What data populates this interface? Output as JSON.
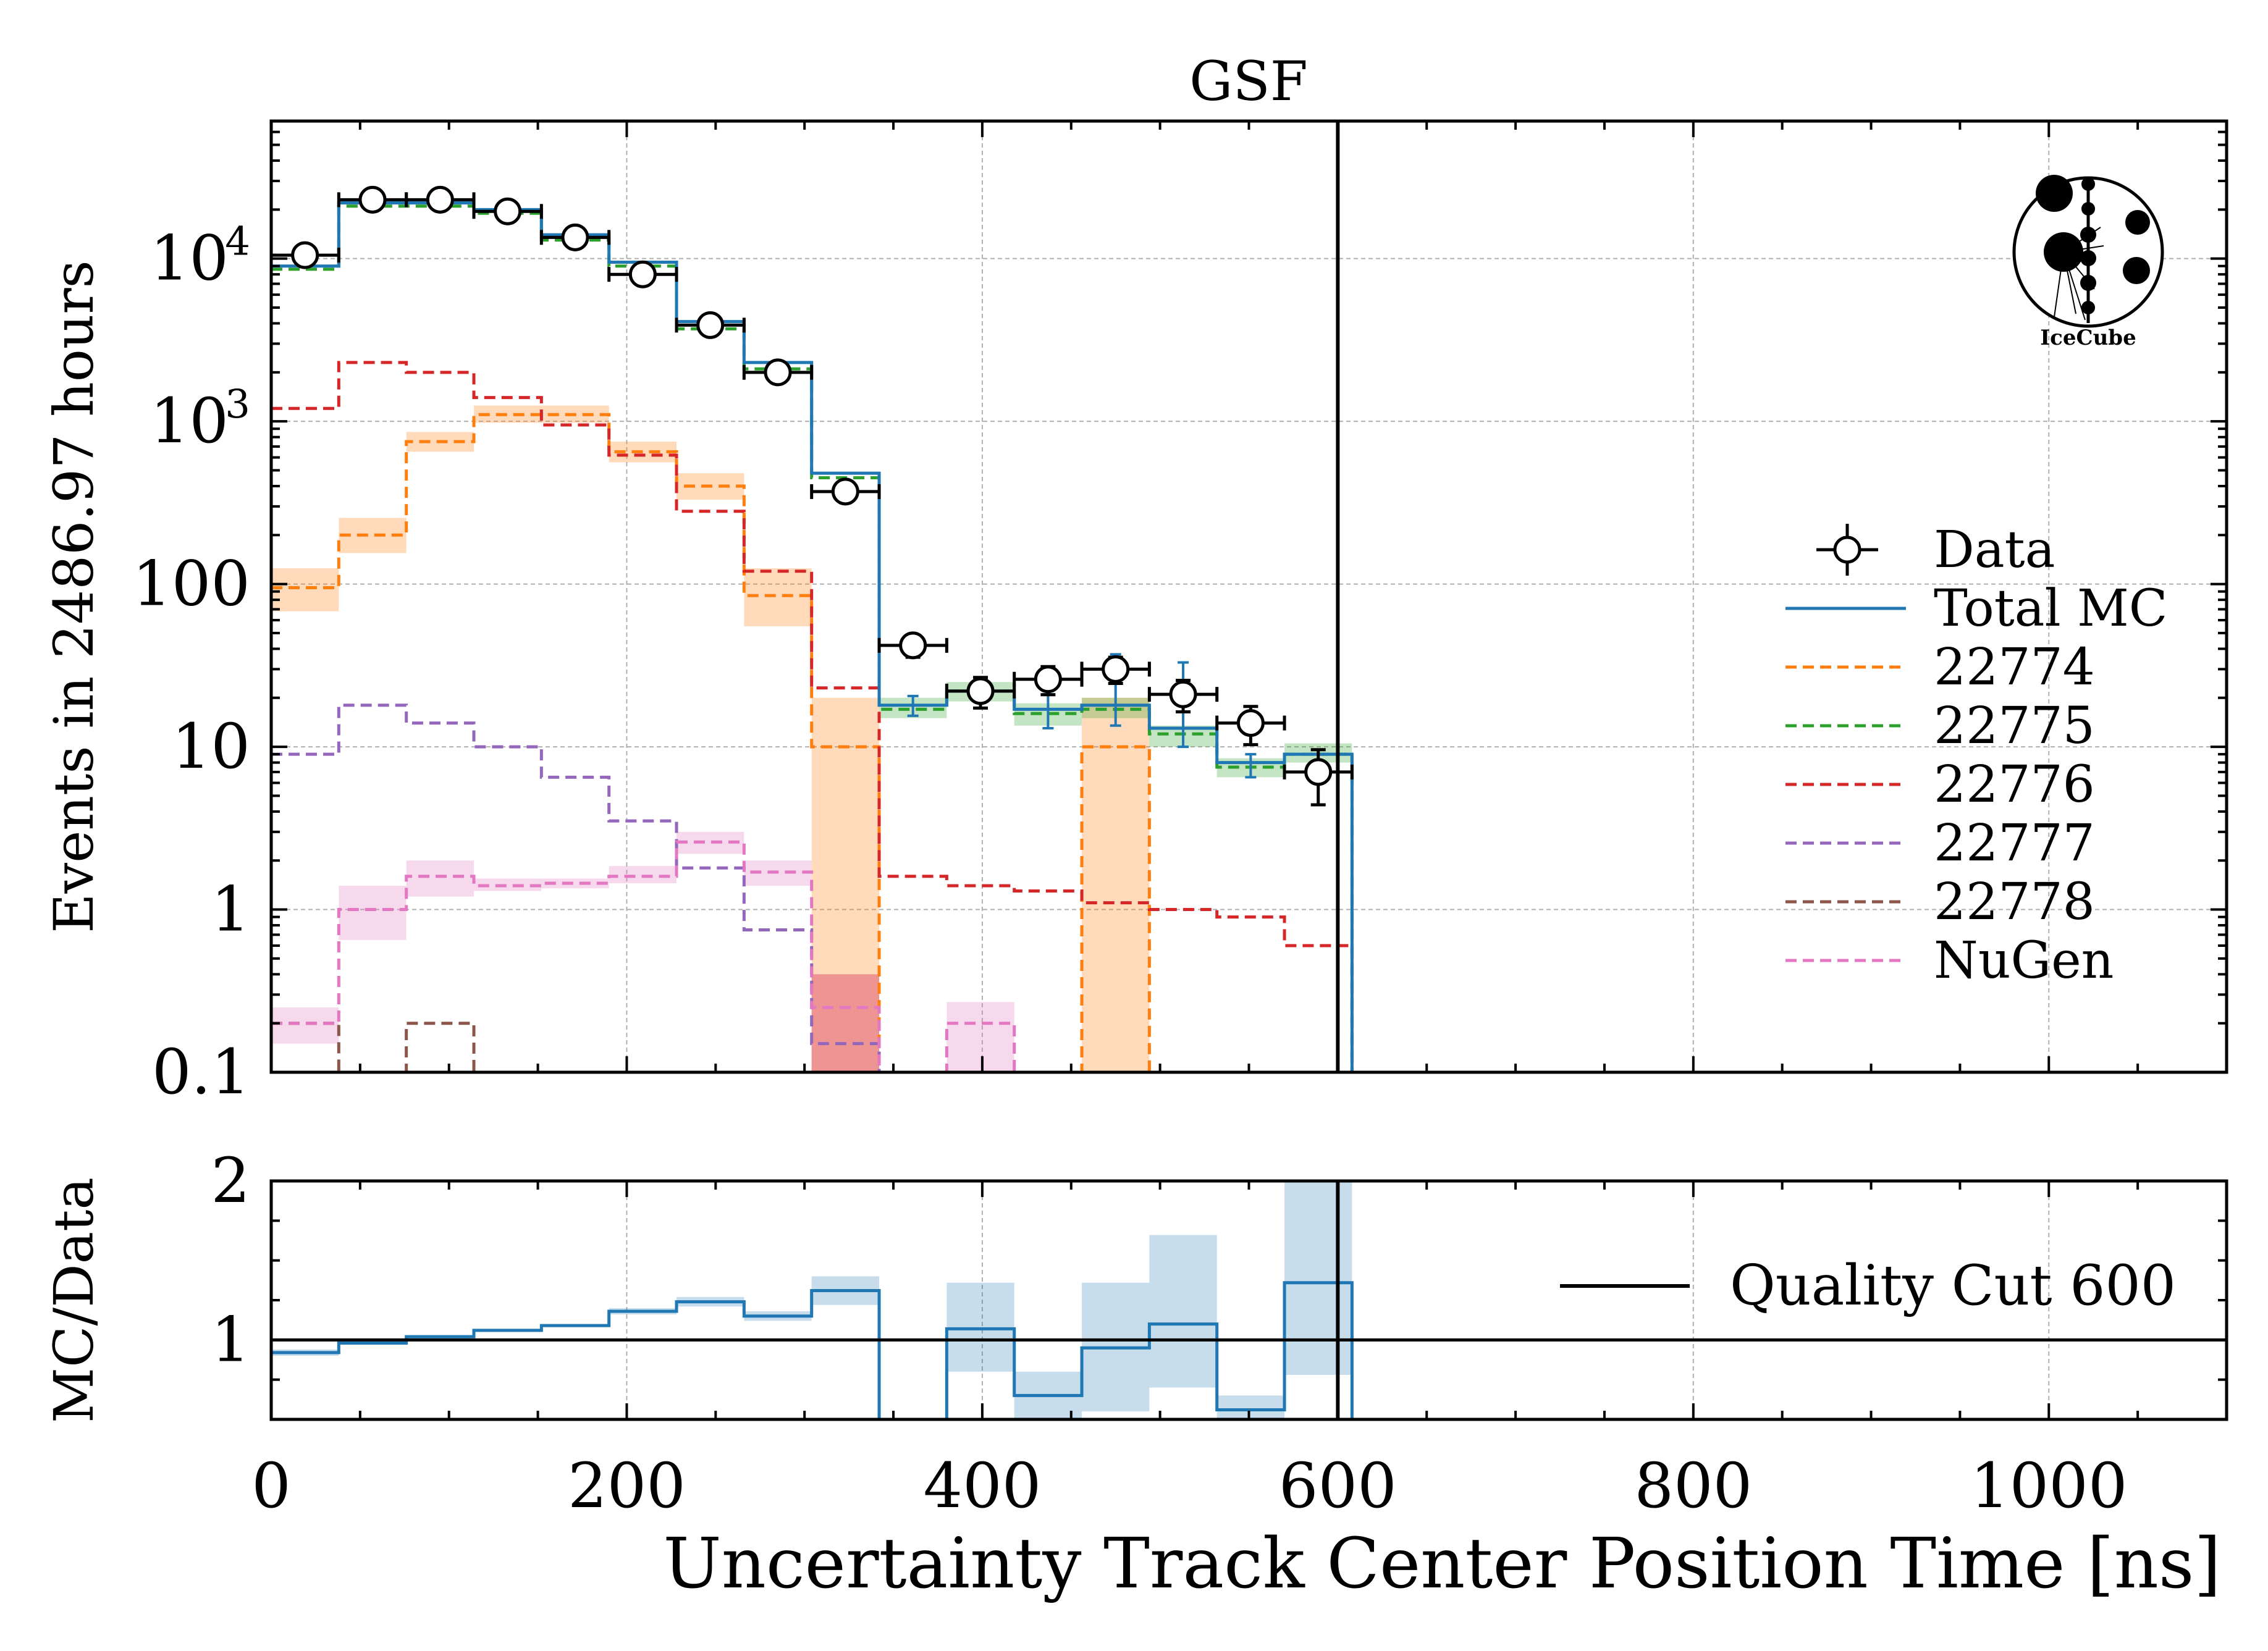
{
  "chart_data": [
    {
      "type": "line",
      "drawstyle": "step",
      "title": "GSF",
      "xlabel": "Uncertainty Track Center Position Time [ns]",
      "ylabel": "Events in 2486.97 hours",
      "xlim": [
        0,
        1100
      ],
      "ylim": [
        0.1,
        70000
      ],
      "yscale": "log",
      "grid": true,
      "legend_position": "right",
      "y_tick_labels": [
        {
          "value": 0.1,
          "label": "0.1",
          "exp": ""
        },
        {
          "value": 1,
          "label": "1",
          "exp": ""
        },
        {
          "value": 10,
          "label": "10",
          "exp": ""
        },
        {
          "value": 100,
          "label": "100",
          "exp": ""
        },
        {
          "value": 1000,
          "label": "10",
          "exp": "3"
        },
        {
          "value": 10000,
          "label": "10",
          "exp": "4"
        }
      ],
      "bin_edges": [
        0,
        38,
        76,
        114,
        152,
        190,
        228,
        266,
        304,
        342,
        380,
        418,
        456,
        494,
        532,
        570,
        608
      ],
      "series": [
        {
          "name": "Data",
          "style": "points",
          "color": "#000000",
          "x": [
            19,
            57,
            95,
            133,
            171,
            209,
            247,
            285,
            323,
            361,
            399,
            437,
            475,
            513,
            551,
            589
          ],
          "values": [
            10500,
            23000,
            23000,
            19500,
            13500,
            8000,
            3900,
            2000,
            370,
            42,
            22,
            26,
            30,
            21,
            14,
            7
          ],
          "yerr_low": [
            100,
            150,
            150,
            140,
            115,
            90,
            62,
            45,
            19,
            6.5,
            4.7,
            5.1,
            5.5,
            4.6,
            3.7,
            2.6
          ],
          "yerr_high": [
            100,
            150,
            150,
            140,
            115,
            90,
            62,
            45,
            19,
            6.5,
            4.7,
            5.1,
            5.5,
            4.6,
            3.7,
            2.6
          ]
        },
        {
          "name": "Total MC",
          "color": "#1f77b4",
          "values": [
            9000,
            22000,
            22000,
            20000,
            14000,
            9500,
            4100,
            2300,
            480,
            18,
            22,
            17,
            18,
            13,
            8,
            9
          ]
        },
        {
          "name": "22774",
          "color": "#ff7f0e",
          "values": [
            95,
            200,
            750,
            1100,
            1100,
            650,
            400,
            85,
            10,
            null,
            null,
            null,
            10,
            0.1,
            null,
            null
          ]
        },
        {
          "name": "22775",
          "color": "#2ca02c",
          "values": [
            8600,
            21000,
            21000,
            19000,
            13000,
            9000,
            3700,
            2100,
            450,
            17,
            22,
            16,
            17,
            12,
            7.5,
            9
          ]
        },
        {
          "name": "22776",
          "color": "#d62728",
          "values": [
            1200,
            2300,
            2000,
            1400,
            950,
            620,
            280,
            120,
            23,
            1.6,
            1.4,
            1.3,
            1.1,
            1.0,
            0.9,
            0.6
          ]
        },
        {
          "name": "22777",
          "color": "#9467bd",
          "values": [
            9,
            18,
            14,
            10,
            6.5,
            3.5,
            1.8,
            0.75,
            0.15,
            null,
            null,
            null,
            null,
            null,
            null,
            null
          ]
        },
        {
          "name": "22778",
          "color": "#8c564b",
          "values": [
            0.2,
            null,
            0.2,
            null,
            null,
            null,
            null,
            null,
            null,
            null,
            null,
            null,
            null,
            null,
            null,
            null
          ]
        },
        {
          "name": "NuGen",
          "color": "#e377c2",
          "values": [
            0.2,
            1.0,
            1.6,
            1.4,
            1.45,
            1.6,
            2.6,
            1.7,
            0.25,
            null,
            0.2,
            null,
            null,
            null,
            null,
            null
          ]
        }
      ],
      "uncertainty_bands": [
        {
          "series": "22774",
          "color": "#ff7f0e",
          "low": [
            68,
            155,
            650,
            980,
            980,
            560,
            330,
            55,
            0.1,
            null,
            null,
            null,
            0.1,
            null,
            null,
            null
          ],
          "high": [
            125,
            255,
            860,
            1250,
            1250,
            750,
            480,
            125,
            20,
            null,
            null,
            null,
            20,
            null,
            null,
            null
          ]
        },
        {
          "series": "22775",
          "color": "#2ca02c",
          "low": [
            null,
            null,
            null,
            null,
            null,
            null,
            null,
            null,
            null,
            15,
            19,
            13.5,
            15,
            10,
            6.5,
            8
          ],
          "high": [
            null,
            null,
            null,
            null,
            null,
            null,
            null,
            null,
            null,
            20,
            25,
            18.5,
            20,
            13.5,
            8.5,
            10.5
          ]
        },
        {
          "series": "NuGen",
          "color": "#e377c2",
          "low": [
            0.15,
            0.65,
            1.2,
            1.3,
            1.35,
            1.45,
            2.2,
            1.4,
            0.1,
            null,
            0.1,
            null,
            null,
            null,
            null,
            null
          ],
          "high": [
            0.25,
            1.4,
            2.0,
            1.55,
            1.55,
            1.85,
            3.0,
            2.0,
            0.4,
            null,
            0.27,
            null,
            null,
            null,
            null,
            null
          ]
        },
        {
          "series": "22776",
          "color": "#d62728",
          "low": [
            null,
            null,
            null,
            null,
            null,
            null,
            null,
            null,
            0.1,
            null,
            null,
            null,
            null,
            null,
            null,
            null
          ],
          "high": [
            null,
            null,
            null,
            null,
            null,
            null,
            null,
            null,
            0.4,
            null,
            null,
            null,
            null,
            null,
            null,
            null
          ]
        }
      ],
      "mc_errorbars": {
        "color": "#1f77b4",
        "x": [
          361,
          399,
          437,
          475,
          513,
          551
        ],
        "low": [
          15.5,
          19,
          13,
          13.5,
          10,
          6.5
        ],
        "high": [
          20.5,
          25,
          21,
          37,
          33,
          9
        ]
      },
      "vline": {
        "x": 600,
        "color": "#000000"
      }
    },
    {
      "type": "line",
      "drawstyle": "step",
      "xlabel": "Uncertainty Track Center Position Time [ns]",
      "ylabel": "MC/Data",
      "xlim": [
        0,
        1100
      ],
      "ylim": [
        0.5,
        2
      ],
      "x_tick_labels": [
        "0",
        "200",
        "400",
        "600",
        "800",
        "1000"
      ],
      "y_tick_labels": [
        "1",
        "2"
      ],
      "grid": true,
      "legend_position": "right",
      "legend": [
        "Quality Cut 600"
      ],
      "bin_edges": [
        0,
        38,
        76,
        114,
        152,
        190,
        228,
        266,
        304,
        342,
        380,
        418,
        456,
        494,
        532,
        570,
        608
      ],
      "series": [
        {
          "name": "MC/Data",
          "color": "#1f77b4",
          "values": [
            0.92,
            0.98,
            1.02,
            1.06,
            1.09,
            1.18,
            1.24,
            1.15,
            1.31,
            null,
            1.07,
            0.65,
            0.95,
            1.1,
            0.56,
            1.36
          ]
        }
      ],
      "band": {
        "color": "#1f77b4",
        "low": [
          0.9,
          0.97,
          1.01,
          1.05,
          1.08,
          1.16,
          1.21,
          1.12,
          1.22,
          null,
          0.8,
          0.5,
          0.55,
          0.7,
          0.5,
          0.78
        ],
        "high": [
          0.94,
          0.99,
          1.03,
          1.07,
          1.1,
          1.2,
          1.27,
          1.18,
          1.4,
          null,
          1.36,
          0.8,
          1.36,
          1.66,
          0.65,
          2.0
        ]
      },
      "hline": {
        "y": 1,
        "color": "#000000"
      },
      "vline": {
        "x": 600,
        "color": "#000000",
        "label": "Quality Cut 600"
      }
    }
  ],
  "logo": {
    "label": "IceCube"
  }
}
